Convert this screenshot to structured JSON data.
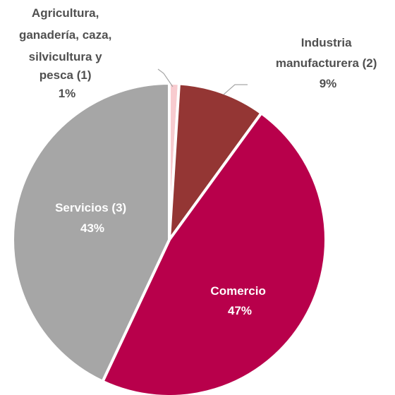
{
  "chart_data": {
    "type": "pie",
    "title": "",
    "start_angle_deg": 0,
    "direction": "clockwise",
    "slices": [
      {
        "label_lines": [
          "Agricultura,",
          "ganadería, caza,",
          "silvicultura y",
          "pesca (1)"
        ],
        "value": 1,
        "value_label": "1%",
        "color": "#F8CBCF",
        "label_position": "outside-top-left"
      },
      {
        "label_lines": [
          "Industria",
          "manufacturera (2)"
        ],
        "value": 9,
        "value_label": "9%",
        "color": "#943634",
        "label_position": "outside-top-right"
      },
      {
        "label_lines": [
          "Comercio"
        ],
        "value": 47,
        "value_label": "47%",
        "color": "#B8004B",
        "label_position": "inside"
      },
      {
        "label_lines": [
          "Servicios (3)"
        ],
        "value": 43,
        "value_label": "43%",
        "color": "#A6A6A6",
        "label_position": "inside"
      }
    ]
  }
}
